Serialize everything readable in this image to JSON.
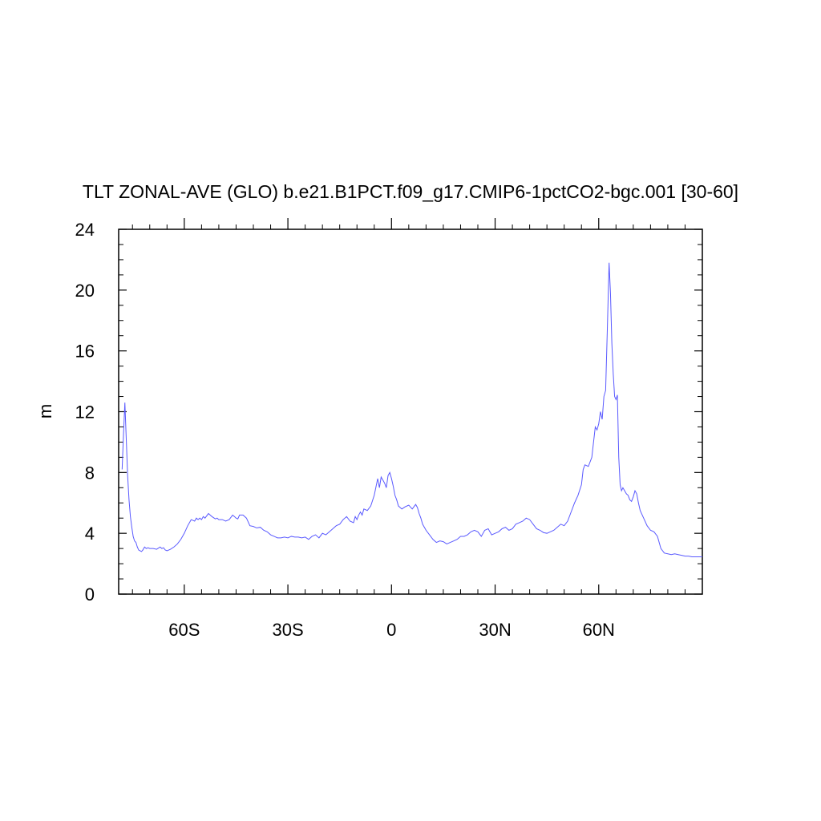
{
  "chart_data": {
    "type": "line",
    "title": "TLT ZONAL-AVE (GLO) b.e21.B1PCT.f09_g17.CMIP6-1pctCO2-bgc.001 [30-60]",
    "xlabel": "",
    "ylabel": "m",
    "xlim": [
      -79,
      90
    ],
    "ylim": [
      0,
      24
    ],
    "x_ticks": [
      {
        "value": -60,
        "label": "60S"
      },
      {
        "value": -30,
        "label": "30S"
      },
      {
        "value": 0,
        "label": "0"
      },
      {
        "value": 30,
        "label": "30N"
      },
      {
        "value": 60,
        "label": "60N"
      }
    ],
    "y_ticks": [
      {
        "value": 0,
        "label": "0"
      },
      {
        "value": 4,
        "label": "4"
      },
      {
        "value": 8,
        "label": "8"
      },
      {
        "value": 12,
        "label": "12"
      },
      {
        "value": 16,
        "label": "16"
      },
      {
        "value": 20,
        "label": "20"
      },
      {
        "value": 24,
        "label": "24"
      }
    ],
    "grid": false,
    "line_color": "#5a5aff",
    "series": [
      {
        "x": [
          -78.0,
          -77.6,
          -77.2,
          -76.8,
          -76.4,
          -76.0,
          -75.6,
          -75.2,
          -74.8,
          -74.4,
          -74.0,
          -73.6,
          -73.2,
          -72.8,
          -72.4,
          -72.0,
          -71.5,
          -71.0,
          -70.5,
          -70.0,
          -69.0,
          -68.0,
          -67.0,
          -66.5,
          -66.0,
          -65.5,
          -65.0,
          -64.0,
          -63.0,
          -62.0,
          -61.0,
          -60.0,
          -59.0,
          -58.0,
          -57.0,
          -56.5,
          -56.0,
          -55.5,
          -55.0,
          -54.5,
          -54.0,
          -53.0,
          -52.0,
          -51.0,
          -50.5,
          -50.0,
          -49.0,
          -48.0,
          -47.0,
          -46.0,
          -45.5,
          -45.0,
          -44.5,
          -44.0,
          -43.0,
          -42.0,
          -41.0,
          -40.0,
          -39.0,
          -38.0,
          -37.0,
          -36.0,
          -35.0,
          -34.0,
          -33.0,
          -32.0,
          -31.0,
          -30.0,
          -29.0,
          -28.0,
          -27.0,
          -26.0,
          -25.0,
          -24.0,
          -23.0,
          -22.0,
          -21.0,
          -20.0,
          -19.0,
          -18.0,
          -17.0,
          -16.0,
          -15.0,
          -14.0,
          -13.0,
          -12.0,
          -11.0,
          -10.5,
          -10.0,
          -9.5,
          -9.0,
          -8.5,
          -8.0,
          -7.0,
          -6.0,
          -5.0,
          -4.0,
          -3.5,
          -3.0,
          -2.5,
          -2.0,
          -1.5,
          -1.0,
          -0.5,
          0.0,
          0.5,
          1.0,
          1.5,
          2.0,
          2.5,
          3.0,
          4.0,
          5.0,
          6.0,
          7.0,
          7.5,
          8.0,
          8.5,
          9.0,
          10.0,
          11.0,
          12.0,
          13.0,
          14.0,
          15.0,
          16.0,
          17.0,
          18.0,
          19.0,
          20.0,
          21.0,
          22.0,
          23.0,
          24.0,
          25.0,
          26.0,
          27.0,
          28.0,
          29.0,
          30.0,
          31.0,
          32.0,
          33.0,
          34.0,
          35.0,
          36.0,
          37.0,
          38.0,
          39.0,
          40.0,
          41.0,
          42.0,
          43.0,
          44.0,
          45.0,
          46.0,
          47.0,
          48.0,
          49.0,
          50.0,
          51.0,
          52.0,
          53.0,
          54.0,
          55.0,
          55.5,
          56.0,
          57.0,
          58.0,
          58.5,
          59.0,
          59.5,
          60.0,
          60.5,
          61.0,
          61.5,
          62.0,
          62.5,
          63.0,
          63.4,
          63.8,
          64.2,
          64.6,
          65.0,
          65.4,
          65.8,
          66.2,
          66.6,
          67.0,
          68.0,
          68.5,
          69.0,
          69.5,
          70.0,
          70.5,
          71.0,
          71.5,
          72.0,
          73.0,
          74.0,
          75.0,
          76.0,
          77.0,
          78.0,
          79.0,
          80.0,
          81.0,
          82.0,
          83.0,
          84.0,
          85.0,
          86.0,
          87.0,
          88.0,
          89.0,
          90.0
        ],
        "values": [
          8.2,
          10.5,
          12.6,
          10.2,
          7.8,
          6.2,
          5.1,
          4.4,
          3.8,
          3.5,
          3.4,
          3.1,
          2.9,
          2.85,
          2.8,
          2.9,
          3.1,
          3.0,
          3.05,
          3.0,
          3.0,
          2.95,
          3.1,
          3.0,
          3.05,
          2.9,
          2.85,
          2.95,
          3.1,
          3.3,
          3.6,
          4.0,
          4.5,
          4.9,
          4.8,
          5.0,
          4.9,
          5.0,
          4.9,
          5.1,
          5.0,
          5.3,
          5.1,
          4.95,
          5.0,
          4.9,
          4.9,
          4.8,
          4.9,
          5.2,
          5.1,
          5.0,
          4.95,
          5.2,
          5.2,
          5.0,
          4.5,
          4.45,
          4.35,
          4.4,
          4.2,
          4.1,
          3.9,
          3.8,
          3.7,
          3.7,
          3.75,
          3.7,
          3.8,
          3.75,
          3.75,
          3.7,
          3.75,
          3.6,
          3.8,
          3.9,
          3.7,
          4.0,
          3.9,
          4.1,
          4.3,
          4.5,
          4.6,
          4.9,
          5.1,
          4.8,
          4.7,
          5.1,
          4.9,
          5.2,
          5.4,
          5.2,
          5.6,
          5.5,
          5.8,
          6.5,
          7.6,
          7.0,
          7.7,
          7.5,
          7.3,
          7.0,
          7.8,
          8.0,
          7.6,
          7.1,
          6.5,
          6.2,
          5.8,
          5.7,
          5.6,
          5.75,
          5.85,
          5.6,
          5.9,
          5.7,
          5.3,
          5.0,
          4.6,
          4.2,
          3.9,
          3.6,
          3.4,
          3.5,
          3.45,
          3.3,
          3.4,
          3.5,
          3.6,
          3.8,
          3.8,
          3.9,
          4.1,
          4.2,
          4.1,
          3.8,
          4.2,
          4.3,
          3.9,
          4.0,
          4.1,
          4.3,
          4.4,
          4.2,
          4.3,
          4.6,
          4.7,
          4.8,
          5.0,
          4.9,
          4.6,
          4.3,
          4.2,
          4.05,
          4.0,
          4.1,
          4.2,
          4.4,
          4.6,
          4.5,
          4.8,
          5.4,
          6.0,
          6.5,
          7.2,
          8.2,
          8.5,
          8.4,
          9.0,
          10.0,
          11.0,
          10.8,
          11.2,
          12.0,
          11.5,
          13.0,
          13.4,
          17.5,
          21.8,
          19.8,
          16.5,
          14.5,
          13.0,
          12.8,
          13.1,
          9.0,
          7.2,
          6.8,
          7.0,
          6.6,
          6.5,
          6.2,
          6.1,
          6.4,
          6.8,
          6.6,
          6.0,
          5.5,
          5.0,
          4.5,
          4.2,
          4.1,
          3.8,
          3.0,
          2.7,
          2.65,
          2.6,
          2.65,
          2.6,
          2.55,
          2.5,
          2.5,
          2.45,
          2.45,
          2.45,
          2.45
        ]
      }
    ]
  }
}
